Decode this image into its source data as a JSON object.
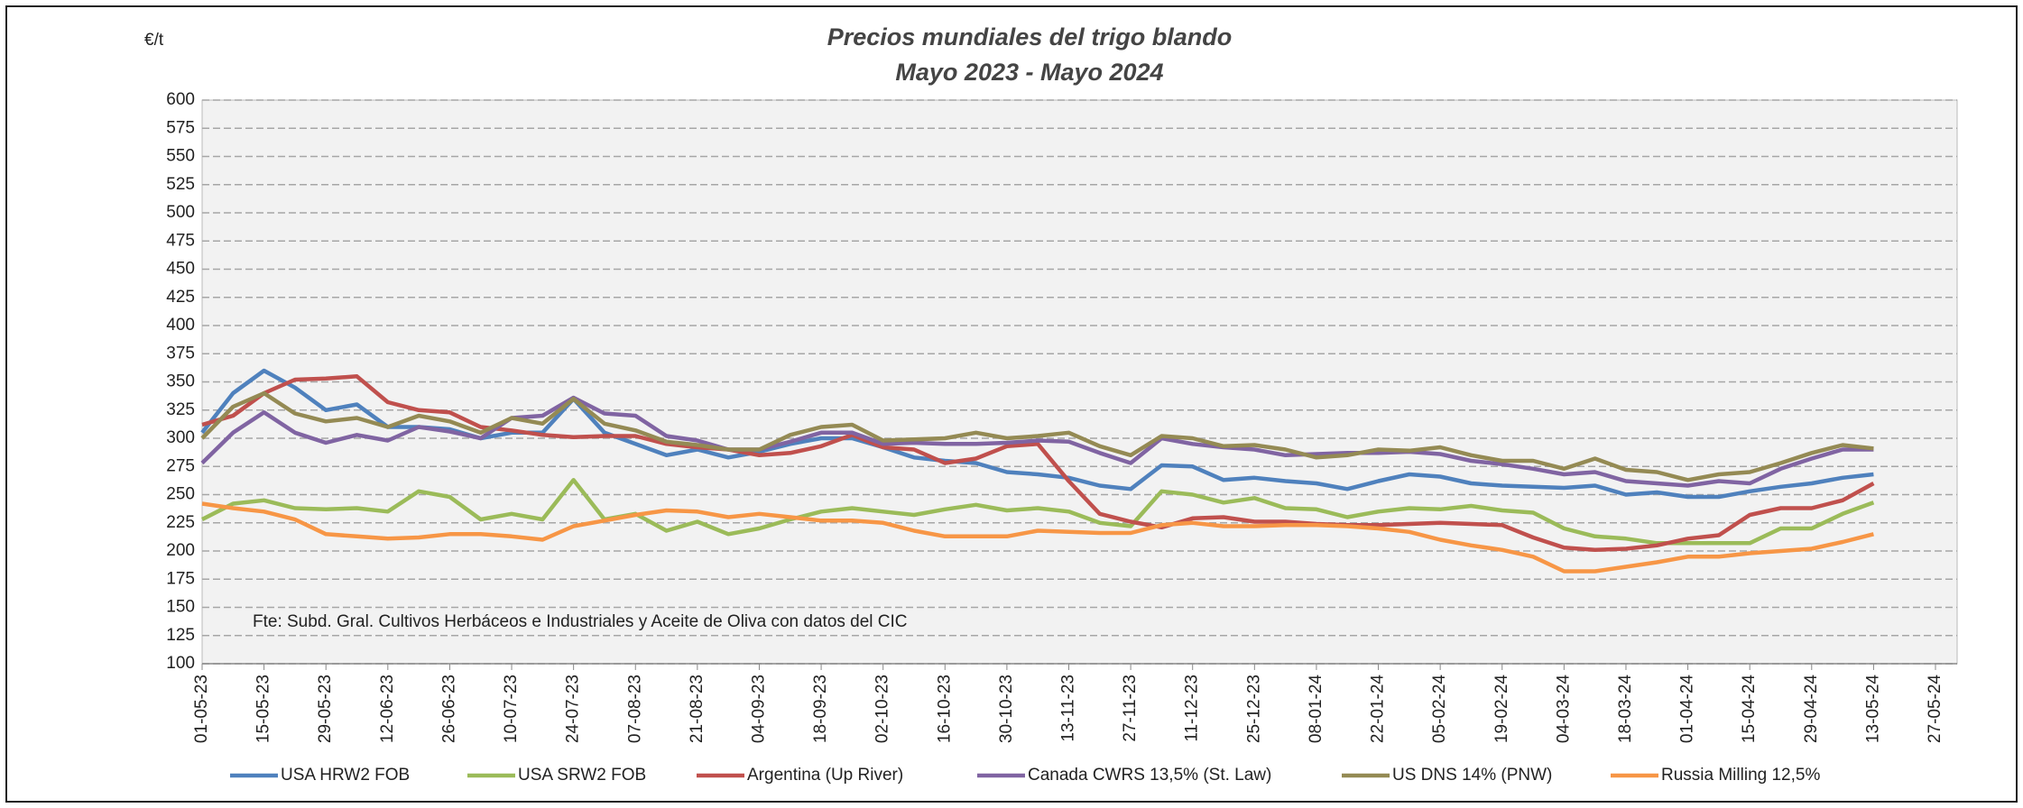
{
  "chart_data": {
    "type": "line",
    "title": "Precios mundiales del trigo blando",
    "subtitle": "Mayo 2023 - Mayo 2024",
    "y_label": "€/t",
    "annotation": "Fte: Subd. Gral. Cultivos Herbáceos e Industriales y Aceite de Oliva con datos del  CIC",
    "categories": [
      "01-05-23",
      null,
      "15-05-23",
      null,
      "29-05-23",
      null,
      "12-06-23",
      null,
      "26-06-23",
      null,
      "10-07-23",
      null,
      "24-07-23",
      null,
      "07-08-23",
      null,
      "21-08-23",
      null,
      "04-09-23",
      null,
      "18-09-23",
      null,
      "02-10-23",
      null,
      "16-10-23",
      null,
      "30-10-23",
      null,
      "13-11-23",
      null,
      "27-11-23",
      null,
      "11-12-23",
      null,
      "25-12-23",
      null,
      "08-01-24",
      null,
      "22-01-24",
      null,
      "05-02-24",
      null,
      "19-02-24",
      null,
      "04-03-24",
      null,
      "18-03-24",
      null,
      "01-04-24",
      null,
      "15-04-24",
      null,
      "29-04-24",
      null,
      "13-05-24",
      null,
      "27-05-24"
    ],
    "ylim": [
      100,
      600
    ],
    "yticks": [
      100,
      125,
      150,
      175,
      200,
      225,
      250,
      275,
      300,
      325,
      350,
      375,
      400,
      425,
      450,
      475,
      500,
      525,
      550,
      575,
      600
    ],
    "grid": true,
    "series": [
      {
        "name": "USA HRW2 FOB",
        "color": "#4f81bd",
        "values": [
          305,
          340,
          360,
          345,
          325,
          330,
          310,
          310,
          308,
          300,
          305,
          305,
          335,
          305,
          295,
          285,
          290,
          283,
          288,
          295,
          300,
          300,
          292,
          283,
          280,
          278,
          270,
          268,
          265,
          258,
          255,
          276,
          275,
          263,
          265,
          262,
          260,
          255,
          262,
          268,
          266,
          260,
          258,
          257,
          256,
          258,
          250,
          252,
          248,
          248,
          253,
          257,
          260,
          265,
          268,
          null,
          null
        ]
      },
      {
        "name": "USA SRW2 FOB",
        "color": "#9bbb59",
        "values": [
          228,
          242,
          245,
          238,
          237,
          238,
          235,
          253,
          248,
          228,
          233,
          228,
          263,
          228,
          233,
          218,
          226,
          215,
          220,
          228,
          235,
          238,
          235,
          232,
          237,
          241,
          236,
          238,
          235,
          225,
          222,
          253,
          250,
          243,
          247,
          238,
          237,
          230,
          235,
          238,
          237,
          240,
          236,
          234,
          220,
          213,
          211,
          207,
          207,
          207,
          207,
          220,
          220,
          233,
          243,
          null,
          null
        ]
      },
      {
        "name": "Argentina (Up River)",
        "color": "#c0504d",
        "values": [
          312,
          320,
          340,
          352,
          353,
          355,
          332,
          325,
          323,
          310,
          307,
          303,
          301,
          302,
          302,
          295,
          292,
          290,
          285,
          287,
          293,
          303,
          292,
          290,
          278,
          282,
          293,
          295,
          262,
          233,
          226,
          221,
          229,
          230,
          226,
          226,
          224,
          223,
          223,
          224,
          225,
          224,
          223,
          212,
          203,
          201,
          202,
          205,
          211,
          214,
          232,
          238,
          238,
          245,
          260,
          null,
          null
        ]
      },
      {
        "name": "Canada CWRS 13,5% (St. Law)",
        "color": "#8064a2",
        "values": [
          278,
          305,
          323,
          305,
          296,
          303,
          298,
          310,
          306,
          300,
          318,
          320,
          336,
          322,
          320,
          302,
          298,
          290,
          290,
          297,
          305,
          305,
          295,
          296,
          295,
          295,
          296,
          298,
          297,
          287,
          278,
          300,
          295,
          292,
          290,
          285,
          286,
          287,
          287,
          288,
          286,
          280,
          277,
          273,
          268,
          270,
          262,
          260,
          258,
          262,
          260,
          273,
          282,
          290,
          290,
          null,
          null
        ]
      },
      {
        "name": "US DNS 14% (PNW)",
        "color": "#948a54",
        "values": [
          300,
          328,
          340,
          322,
          315,
          318,
          310,
          320,
          315,
          305,
          318,
          313,
          335,
          313,
          307,
          297,
          294,
          290,
          290,
          303,
          310,
          312,
          298,
          299,
          300,
          305,
          300,
          302,
          305,
          293,
          285,
          302,
          300,
          293,
          294,
          290,
          283,
          285,
          290,
          289,
          292,
          285,
          280,
          280,
          273,
          282,
          272,
          270,
          263,
          268,
          270,
          278,
          287,
          294,
          291,
          null,
          null
        ]
      },
      {
        "name": "Russia Milling 12,5%",
        "color": "#f79646",
        "values": [
          242,
          238,
          235,
          228,
          215,
          213,
          211,
          212,
          215,
          215,
          213,
          210,
          222,
          227,
          232,
          236,
          235,
          230,
          233,
          230,
          227,
          227,
          225,
          218,
          213,
          213,
          213,
          218,
          217,
          216,
          216,
          223,
          225,
          222,
          222,
          223,
          223,
          222,
          220,
          217,
          210,
          205,
          201,
          195,
          182,
          182,
          186,
          190,
          195,
          195,
          198,
          200,
          202,
          208,
          215,
          null,
          null
        ]
      }
    ]
  }
}
